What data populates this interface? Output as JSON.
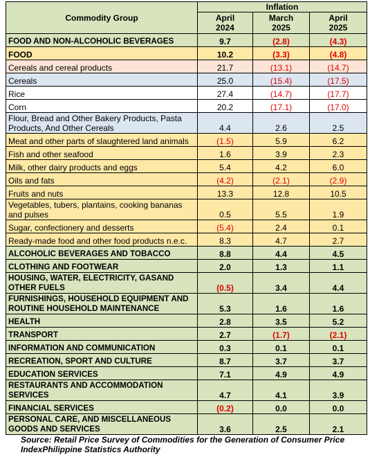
{
  "table": {
    "header": {
      "commodity_group": "Commodity Group",
      "inflation": "Inflation",
      "columns": [
        {
          "month": "April",
          "year": "2024"
        },
        {
          "month": "March",
          "year": "2025"
        },
        {
          "month": "April",
          "year": "2025"
        }
      ]
    },
    "rows": [
      {
        "label": "FOOD AND NON-ALCOHOLIC BEVERAGES",
        "values": [
          "9.7",
          "(2.8)",
          "(4.3)"
        ]
      },
      {
        "label": "FOOD",
        "values": [
          "10.2",
          "(3.3)",
          "(4.8)"
        ]
      },
      {
        "label": "Cereals and cereal products",
        "values": [
          "21.7",
          "(13.1)",
          "(14.7)"
        ]
      },
      {
        "label": "Cereals",
        "values": [
          "25.0",
          "(15.4)",
          "(17.5)"
        ]
      },
      {
        "label": "Rice",
        "values": [
          "27.4",
          "(14.7)",
          "(17.7)"
        ]
      },
      {
        "label": "Corn",
        "values": [
          "20.2",
          "(17.1)",
          "(17.0)"
        ]
      },
      {
        "label": "Flour, Bread and Other Bakery Products, Pasta Products, And Other Cereals",
        "values": [
          "4.4",
          "2.6",
          "2.5"
        ]
      },
      {
        "label": "Meat and other parts of slaughtered land animals",
        "values": [
          "(1.5)",
          "5.9",
          "6.2"
        ]
      },
      {
        "label": "Fish and other seafood",
        "values": [
          "1.6",
          "3.9",
          "2.3"
        ]
      },
      {
        "label": "Milk, other dairy products and eggs",
        "values": [
          "5.4",
          "4.2",
          "6.0"
        ]
      },
      {
        "label": "Oils and fats",
        "values": [
          "(4.2)",
          "(2.1)",
          "(2.9)"
        ]
      },
      {
        "label": "Fruits and nuts",
        "values": [
          "13.3",
          "12.8",
          "10.5"
        ]
      },
      {
        "label": "Vegetables, tubers, plantains, cooking bananas and pulses",
        "values": [
          "0.5",
          "5.5",
          "1.9"
        ]
      },
      {
        "label": "Sugar, confectionery and desserts",
        "values": [
          "(5.4)",
          "2.4",
          "0.1"
        ]
      },
      {
        "label": "Ready-made food and other food products n.e.c.",
        "values": [
          "8.3",
          "4.7",
          "2.7"
        ]
      },
      {
        "label": "ALCOHOLIC BEVERAGES AND TOBACCO",
        "values": [
          "8.8",
          "4.4",
          "4.5"
        ]
      },
      {
        "label": "CLOTHING AND FOOTWEAR",
        "values": [
          "2.0",
          "1.3",
          "1.1"
        ]
      },
      {
        "label": "HOUSING, WATER, ELECTRICITY, GASAND OTHER FUELS",
        "values": [
          "(0.5)",
          "3.4",
          "4.4"
        ]
      },
      {
        "label": "FURNISHINGS, HOUSEHOLD EQUIPMENT AND ROUTINE HOUSEHOLD MAINTENANCE",
        "values": [
          "5.3",
          "1.6",
          "1.6"
        ]
      },
      {
        "label": "HEALTH",
        "values": [
          "2.8",
          "3.5",
          "5.2"
        ]
      },
      {
        "label": "TRANSPORT",
        "values": [
          "2.7",
          "(1.7)",
          "(2.1)"
        ]
      },
      {
        "label": "INFORMATION AND COMMUNICATION",
        "values": [
          "0.3",
          "0.1",
          "0.1"
        ]
      },
      {
        "label": "RECREATION, SPORT AND CULTURE",
        "values": [
          "8.7",
          "3.7",
          "3.7"
        ]
      },
      {
        "label": "EDUCATION SERVICES",
        "values": [
          "7.1",
          "4.9",
          "4.9"
        ]
      },
      {
        "label": "RESTAURANTS AND ACCOMMODATION SERVICES",
        "values": [
          "4.7",
          "4.1",
          "3.9"
        ]
      },
      {
        "label": "FINANCIAL SERVICES",
        "values": [
          "(0.2)",
          "0.0",
          "0.0"
        ]
      },
      {
        "label": "PERSONAL CARE, AND MISCELLANEOUS GOODS AND SERVICES",
        "values": [
          "3.6",
          "2.5",
          "2.1"
        ]
      }
    ]
  },
  "source": "Source: Retail Price Survey of Commodities for the Generation of Consumer Price IndexPhilippine Statistics Authority"
}
